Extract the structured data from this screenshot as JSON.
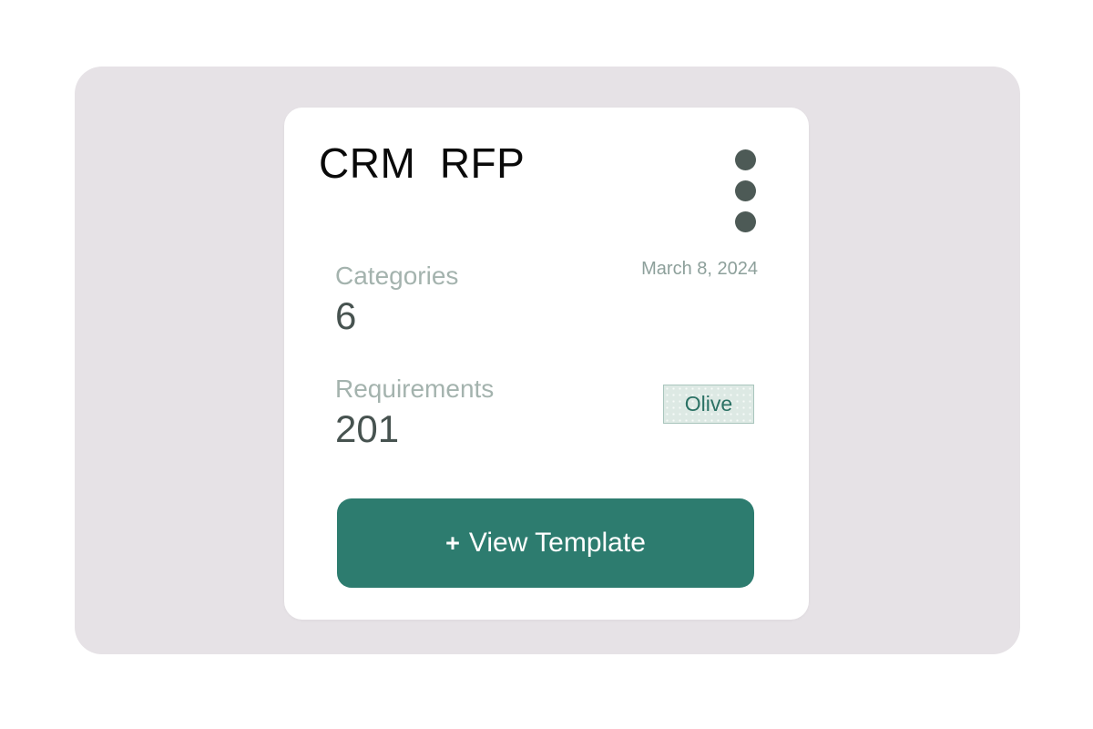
{
  "window": {
    "background": "#ffffff",
    "panel_background": "#e6e2e6"
  },
  "card": {
    "title": "CRM  RFP",
    "date": "March 8, 2024",
    "menu_icon": "kebab-menu-three-dots-vertical",
    "stats": [
      {
        "label": "Categories",
        "value": "6"
      },
      {
        "label": "Requirements",
        "value": "201"
      }
    ],
    "badge": {
      "label": "Olive",
      "background": "#dde9e4",
      "border": "#a9c5bd",
      "text_color": "#2b7164"
    },
    "view_template_button": {
      "plus": "+",
      "label": "View Template",
      "background": "#2d7c6f",
      "text_color": "#ffffff"
    },
    "colors": {
      "title_text": "#0a0a0a",
      "label_text": "#a4b3ae",
      "value_text": "#475350",
      "date_text": "#8da09b",
      "menu_dots": "#4d5a56"
    }
  }
}
